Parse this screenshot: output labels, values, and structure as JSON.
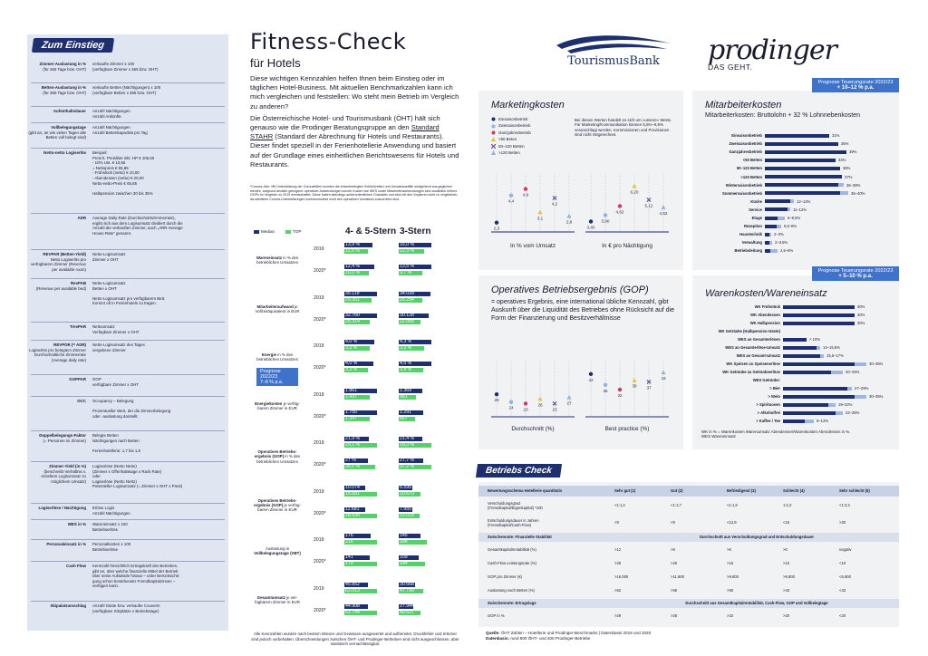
{
  "glossary": {
    "title": "Zum Einstieg",
    "rows": [
      {
        "term": "Zimmer-Auslastung in %",
        "sub": "(für 365 Tage bzw. OHT)",
        "def": "verkaufte Zimmer x 100\n(verfügbare Zimmer x 365 bzw. OHT)"
      },
      {
        "term": "Betten-Auslastung in %",
        "sub": "(für 365 Tage bzw. OHT)",
        "def": "verkaufte Betten (Nächtigungen) x 100\n(verfügbare Betten x 365 bzw. OHT)"
      },
      {
        "term": "Aufenthaltsdauer",
        "sub": "",
        "def": "Anzahl Nächtigungen\nAnzahl Ankünfte"
      },
      {
        "term": "Vollbelegungstage",
        "sub": "(gibt an, an wie vielen Tagen alle Betten voll belegt sind)",
        "def": "Anzahl Nächtigungen\nAnzahl Bettenkapazität pro Tag"
      },
      {
        "term": "Netto-netto Logiserlös",
        "sub": "",
        "def": "Beispiel:\nPreis lt. Preisliste inkl. HP        € 106,50\n- 10% Ust.                            € 10,65\n= Nettopreis                          € 95,85\n- Frühstück (netto)                   € 10,00\n- Abendessen (netto)                  € 20,00\nNetto-netto-Preis                     € 65,85\n\nHalbpension zwischen 30 bis 35%"
      },
      {
        "term": "ADR",
        "sub": "",
        "def": "Average Daily Rate (Durchschnittszimmerrate),\nergibt sich aus dem Logisumsatz dividiert durch die\nAnzahl der verkauften Zimmer, auch „ARR Average\nHouse Rate\" genannt."
      },
      {
        "term": "REVPAR (Betten-Yield)",
        "sub": "Netto Logiserlös pro verfügbarem Zimmer (Revenue per available room)",
        "def": "Netto-Logisumsatz\nZimmer x OHT"
      },
      {
        "term": "RevPAB",
        "sub": "(Revenue per available bed)",
        "def": "Netto-Logisumsatz\nBetten x OHT\n\nNetto-Logisumsatz pro verfügbarem Bett.\nKommt oft in Ferienhotels zu tragen."
      },
      {
        "term": "TrevPAR",
        "sub": "",
        "def": "Nettoumsatz\nVerfügbare Zimmer x OHT"
      },
      {
        "term": "REVPOR (= ADR)",
        "sub": "Logiserlös pro belegtem Zimmer Durchschnittliche Zimmerrate (Average daily rate)",
        "def": "Netto-Logisumsatz des Tages\nvergebene Zimmer"
      },
      {
        "term": "GOPPAR",
        "sub": "",
        "def": "GOP\nverfügbare Zimmer x OHT"
      },
      {
        "term": "OCC",
        "sub": "",
        "def": "Occupancy – Belegung\n\nProzentueller Wert, der die Zimmerbelegung\noder -auslastung darstellt."
      },
      {
        "term": "Doppelbelegungs-Faktor",
        "sub": "(= Personen im Zimmer)",
        "def": "Belegte Betten\nNächtigungen nach Betten\n\nFerienhotellerie: 1,7 bis 1,8"
      },
      {
        "term": "Zimmer-Yield (in %)",
        "sub": "(beschreibt Verhältnis v. erzieltem Logisumsatz zu möglichem Umsatz)",
        "def": "Logiserlöse (Netto Netto)\n(Zimmer x Offenhaltetage x Rack Rate)\noder\nLogiserlöse (Netto Netto)\nPotentieller Logisumsatz (= Zimmer x OHT x Preis)"
      },
      {
        "term": "Logiserlöse / Nächtigung",
        "sub": "",
        "def": "Erlöse Logis\nAnzahl Nächtigungen"
      },
      {
        "term": "WES in %",
        "sub": "",
        "def": "Wareneinsatz        x 100\nBetriebserlöse"
      },
      {
        "term": "Personaleinsatz in %",
        "sub": "",
        "def": "Personalkosten        x 100\nBetriebserlöse"
      },
      {
        "term": "Cash Flow",
        "sub": "",
        "def": "Kennzahl hinsichtlich Ertragskraft des Betriebes,\ngibt an, über welche finanzielle Mittel der Betrieb\nüber seine Aufwände hinaus – unter Berücksichti-\ngung schon bestehender Fremdkapitalzinsen –\nverfügen kann."
      },
      {
        "term": "Skipalatzumschlag",
        "sub": "",
        "def": "Anzahl Gäste bzw. verkaufte Couverts\n(verfügbare Sitzplätze x Betriebstage)"
      }
    ]
  },
  "header": {
    "title": "Fitness-Check",
    "subtitle": "für Hotels",
    "intro1": "Diese wichtigen Kennzahlen helfen Ihnen beim Einstieg oder im täglichen Hotel-Business. Mit aktuellen Benchmarkzahlen kann ich mich vergleichen und feststellen: Wo steht mein Betrieb im Vergleich zu anderen?",
    "intro2a": "Die Österreichische Hotel- und Tourismusbank (ÖHT) hält sich genauso wie die Prodinger Beratungsgruppe an den ",
    "intro2link": "Standard STAHR",
    "intro2b": " (Standard der Abrechnung für Hotels und Restaurants). Dieser findet speziell in der Ferienhotellerie Anwendung und basiert auf der Grundlage eines einheitlichen Berichtswesens für Hotels und Restaurants.",
    "corona_note": "*Corona-Jahr: Mit Unterstützung der Coronahilfen konnten die krisenbedingten Schließzeiten und Umsatzausfälle weitgehend aus-geglichen werden, aufgrund deutlich geringerer operativer Aufwendungen konnte Kosten wie WES sowie Mitarbeiteraufwendungen sind zusätzlich höhere GOPs im Vergleich zu 2019 erwirtschaftet. Diese haben allerdings außerordentlichen Charakter und sind mit den Vorjahren nicht zu vergleichen, da sämtliche Corona-Unterstützungen kontoinnewiese nicht den operativen Umsätzen zuzuordnen sind."
  },
  "benchmark": {
    "legend_median": "Median",
    "legend_top": "TOP",
    "col1": "4- & 5-Stern",
    "col2": "3-Stern",
    "prognose": "Prognose 2022/23\n7–8 % p.a.",
    "blocks": [
      {
        "label_b": "Wareneinsatz",
        "label": " in % des betrieblichen Umsatzes",
        "rows": [
          {
            "year": "2019",
            "a_med": "13,9 %",
            "a_top": "11,5 %",
            "b_med": "16,0 %",
            "b_top": "12,3 %",
            "am": 13.9,
            "at": 11.5,
            "bm": 16.0,
            "bt": 12.3
          },
          {
            "year": "2020*",
            "a_med": "12,4 %",
            "a_top": "10,0 %",
            "b_med": "13,5 %",
            "b_top": "9,7 %",
            "am": 12.4,
            "at": 10.0,
            "bm": 13.5,
            "bt": 9.7
          }
        ]
      },
      {
        "label_b": "Mitarbeiteraufwand",
        "label": " je Vollzeitäquivalent in EUR",
        "rows": [
          {
            "year": "2019",
            "a_med": "35.119",
            "a_top": "29.351",
            "b_med": "34.039",
            "b_top": "25.294",
            "am": 35119,
            "at": 29351,
            "bm": 34039,
            "bt": 25294
          },
          {
            "year": "2020*",
            "a_med": "32.760",
            "a_top": "25.314",
            "b_med": "30.128",
            "b_top": "22.066",
            "am": 32760,
            "at": 25314,
            "bm": 30128,
            "bt": 22066
          }
        ]
      },
      {
        "label_b": "Energie",
        "label": " in % des betrieblichen Umsatzes",
        "rows": [
          {
            "year": "2019",
            "a_med": "4,0 %",
            "a_top": "3,3 %",
            "b_med": "4,3 %",
            "b_top": "3,3 %",
            "am": 4.0,
            "at": 3.3,
            "bm": 4.3,
            "bt": 3.3
          },
          {
            "year": "2020*",
            "a_med": "4,0 %",
            "a_top": "3,3 %",
            "b_med": "4,5 %",
            "b_top": "3,4 %",
            "am": 4.0,
            "at": 3.3,
            "bm": 4.5,
            "bt": 3.4
          }
        ]
      },
      {
        "label_b": "Energiekosten",
        "label": " je verfüg-barem Zimmer in EUR",
        "rows": [
          {
            "year": "2019",
            "a_med": "1.861",
            "a_top": "1.437",
            "b_med": "1.369",
            "b_top": "981",
            "am": 1861,
            "at": 1437,
            "bm": 1369,
            "bt": 981
          },
          {
            "year": "2020*",
            "a_med": "1.750",
            "a_top": "1.347",
            "b_med": "1.291",
            "b_top": "867",
            "am": 1750,
            "at": 1347,
            "bm": 1291,
            "bt": 867
          }
        ]
      },
      {
        "label_b": "Operatives Betriebs-ergebnis (GOP)",
        "label": " in % des betrieblichen Umsatzes",
        "rows": [
          {
            "year": "2019",
            "a_med": "21,9 %",
            "a_top": "29,1 %",
            "b_med": "21,4 %",
            "b_top": "29,3 %",
            "am": 21.9,
            "at": 29.1,
            "bm": 21.4,
            "bt": 29.3
          },
          {
            "year": "2020*",
            "a_med": "27 %",
            "a_top": "35,1 %",
            "b_med": "27,7 %",
            "b_top": "37,2 %",
            "am": 27,
            "at": 35.1,
            "bm": 27.7,
            "bt": 37.2
          }
        ]
      },
      {
        "label_b": "Operatives Betriebs-ergebnis (GOP)",
        "label": " je verfüg-barem Zimmer in EUR",
        "rows": [
          {
            "year": "2019",
            "a_med": "10.074",
            "a_top": "15.681",
            "b_med": "6.595",
            "b_top": "10.670",
            "am": 10074,
            "at": 15681,
            "bm": 6595,
            "bt": 10670
          },
          {
            "year": "2020*",
            "a_med": "11.681",
            "a_top": "18.539",
            "b_med": "7.955",
            "b_top": "12.015",
            "am": 11681,
            "at": 18539,
            "bm": 7955,
            "bt": 12015
          }
        ]
      },
      {
        "label_b": "Vollbelegungstage (VBT)",
        "label": "Auslastung in ",
        "rows": [
          {
            "year": "2019",
            "a_med": "176",
            "a_top": "216",
            "b_med": "145",
            "b_top": "186",
            "am": 176,
            "at": 216,
            "bm": 145,
            "bt": 186
          },
          {
            "year": "2020*",
            "a_med": "141",
            "a_top": "179",
            "b_med": "109",
            "b_top": "144",
            "am": 141,
            "at": 179,
            "bm": 109,
            "bt": 144
          }
        ]
      },
      {
        "label_b": "Gesamtumsatz",
        "label": " je ver-fügbarem Zimmer in EUR",
        "rows": [
          {
            "year": "2019",
            "a_med": "45.852",
            "a_top": "63.013",
            "b_med": "30.668",
            "b_top": "47.799",
            "am": 45852,
            "at": 63013,
            "bm": 30668,
            "bt": 47799
          },
          {
            "year": "2020*",
            "a_med": "44.908",
            "a_top": "61.744",
            "b_med": "27.944",
            "b_top": "40.637",
            "am": 44908,
            "at": 61744,
            "bm": 27944,
            "bt": 40637
          }
        ]
      }
    ]
  },
  "footer_note": "Alle Kennzahlen wurden nach bestem Wissen und Gewissen ausgewertet und aufbereitet. Druckfehler und Irrtümer sind jedoch vorbehalten. Überschneidungen zwischen ÖHT- und Prodinger-Betrieben sind nicht ausgeschlossen, aber statistisch vernachlässigbar.",
  "logos": {
    "tb": "TourismusBank",
    "prodinger": "prodinger",
    "prodinger_sub": "DAS GEHT."
  },
  "marketing": {
    "title": "Marketingkosten",
    "legend": [
      "Einsaisonbetrieb",
      "Zweisaisonbetrieb",
      "Ganzjahresbetrieb",
      "<50 Beten",
      "50–120 Betten",
      ">120 Betten"
    ],
    "note": "Bei diesen Werten handelt es sich um »unsere« Werte. Für Marketing/Kommunikation können 5,5%–6,5% veranschlagt werden. Kommissionen und Provisionen sind nicht mitgerechnet.",
    "left_caption": "In % vom Umsatz",
    "right_caption": "In € pro Nächtigung",
    "left": [
      {
        "label": "2,3",
        "v": 2.3
      },
      {
        "label": "4,4",
        "v": 4.4
      },
      {
        "label": "4,9",
        "v": 4.9
      },
      {
        "label": "3,1",
        "v": 3.1
      },
      {
        "label": "4,2",
        "v": 4.2
      },
      {
        "label": "2,8",
        "v": 2.8
      }
    ],
    "right": [
      {
        "label": "3,40",
        "v": 3.4
      },
      {
        "label": "3,90",
        "v": 3.9
      },
      {
        "label": "4,62",
        "v": 4.62
      },
      {
        "label": "6,20",
        "v": 6.2
      },
      {
        "label": "5,12",
        "v": 5.12
      },
      {
        "label": "4,52",
        "v": 4.52
      }
    ]
  },
  "gop": {
    "title": "Operatives Betriebsergebnis (GOP)",
    "desc": "= operatives Ergebnis, eine international übliche Kennzahl, gibt Auskunft über die Liquidität des Betriebes ohne Rücksicht auf die Form der Finanzierung und Besitzverhältnisse",
    "left_caption": "Durchschnitt (%)",
    "right_caption": "Best practice (%)",
    "left": [
      {
        "label": "29",
        "v": 29
      },
      {
        "label": "24",
        "v": 24
      },
      {
        "label": "23",
        "v": 23
      },
      {
        "label": "26",
        "v": 26
      },
      {
        "label": "23",
        "v": 23
      },
      {
        "label": "27",
        "v": 27
      }
    ],
    "right": [
      {
        "label": "42",
        "v": 42
      },
      {
        "label": "35",
        "v": 35
      },
      {
        "label": "32",
        "v": 32
      },
      {
        "label": "38",
        "v": 38
      },
      {
        "label": "37",
        "v": 37
      },
      {
        "label": "43",
        "v": 43
      }
    ]
  },
  "staff": {
    "title": "Mitarbeiterkosten",
    "subtitle": "Mitarbeiterkosten: Bruttolohn + 32 % Lohnnebenkosten",
    "badge1": "Prognose Teuerungsrate 2022/23",
    "badge2": "+ 10–12 % p.a.",
    "rows": [
      {
        "label": "Einsaisonbetrieb",
        "val": "31%",
        "v": 31,
        "lo": 31
      },
      {
        "label": "Zweisaisonbetrieb",
        "val": "35%",
        "v": 35,
        "lo": 35
      },
      {
        "label": "Ganzjahresbetrieb",
        "val": "39%",
        "v": 39,
        "lo": 39
      },
      {
        "label": "<50 Betten",
        "val": "34%",
        "v": 34,
        "lo": 34
      },
      {
        "label": "50–120 Betten",
        "val": "36%",
        "v": 36,
        "lo": 36
      },
      {
        "label": ">120 Betten",
        "val": "37%",
        "v": 37,
        "lo": 37
      },
      {
        "label": "Wintersaisonbetrieb",
        "val": "35–38%",
        "v": 38,
        "lo": 35
      },
      {
        "label": "Sommersaisonbetrieb",
        "val": "36–40%",
        "v": 40,
        "lo": 36
      },
      {
        "label": "Küche",
        "val": "12–14%",
        "v": 14,
        "lo": 12
      },
      {
        "label": "Service",
        "val": "11–12%",
        "v": 12,
        "lo": 11
      },
      {
        "label": "Etage",
        "val": "6–9,5%",
        "v": 9.5,
        "lo": 6
      },
      {
        "label": "Rezeption",
        "val": "5,5–8%",
        "v": 8,
        "lo": 5.5
      },
      {
        "label": "Haustechnik",
        "val": "2–3%",
        "v": 3,
        "lo": 2
      },
      {
        "label": "Verwaltung",
        "val": "2–3,5%",
        "v": 3.5,
        "lo": 2
      },
      {
        "label": "Betriebsleitung",
        "val": "2,5–6%",
        "v": 6,
        "lo": 2.5
      }
    ]
  },
  "wares": {
    "title": "Warenkosten/Wareneinsatz",
    "badge1": "Prognose Teuerungsrate 2022/23",
    "badge2": "+ 5–10 % p.a.",
    "rows": [
      {
        "label": "WK Frühstück",
        "val": "30%",
        "v": 30,
        "lo": 30
      },
      {
        "label": "WK Abendessen",
        "val": "30%",
        "v": 30,
        "lo": 30
      },
      {
        "label": "WK Halbpension",
        "val": "30%",
        "v": 30,
        "lo": 30
      },
      {
        "label": "WK Getränke (Halbpension-Gäste)",
        "val": "",
        "v": 0,
        "lo": 0
      },
      {
        "label": "WES an Gesamterlösen",
        "val": "> 10%",
        "v": 10,
        "lo": 10
      },
      {
        "label": "WES an Gesamterlöse-Umsatz",
        "val": "14–15,5%",
        "v": 15.5,
        "lo": 14
      },
      {
        "label": "WES an Gesamt-Umsatz",
        "val": "15,5–17%",
        "v": 17,
        "lo": 15.5
      },
      {
        "label": "WK Speisen zu Speisenerlöse",
        "val": "30–35%",
        "v": 35,
        "lo": 30
      },
      {
        "label": "WK Getränke zu Getränkeerlöse",
        "val": "20–25%",
        "v": 25,
        "lo": 20
      },
      {
        "label": "WES Getränke:",
        "val": "",
        "v": 0,
        "lo": 0
      },
      {
        "label": "> Bier",
        "val": "27–29%",
        "v": 29,
        "lo": 27
      },
      {
        "label": "> Wein",
        "val": "30–35%",
        "v": 35,
        "lo": 30
      },
      {
        "label": "> Spirituosen",
        "val": "19–22%",
        "v": 22,
        "lo": 19
      },
      {
        "label": "> Alkoholfrei",
        "val": "22–25%",
        "v": 25,
        "lo": 22
      },
      {
        "label": "> Kaffee / Tee",
        "val": "9–13%",
        "v": 13,
        "lo": 9
      }
    ],
    "note": "WK in % = Warenkosten Warenumsatz Abendessen/Warenkosten Abendessen in %.\nWES Wareneinsatz"
  },
  "check": {
    "title": "Betriebs Check",
    "headers": [
      "Bewertungsschema Hotellerie quantitativ",
      "Sehr gut (1)",
      "Gut (2)",
      "Befriedigend (3)",
      "Schlecht (4)",
      "Sehr schlecht (5)"
    ],
    "rows": [
      {
        "type": "row",
        "cells": [
          "Verschuldungsgrad\n(Fremdkapital/Eigenkapital) *100",
          "<1:1,4",
          "<1:1,7",
          "<1:1,9",
          "1:2,3",
          "<1:2,3"
        ]
      },
      {
        "type": "row",
        "cells": [
          "Entschuldungsdauer in Jahren\n(Fremdkapital/Cash-Flow)",
          "<9",
          "<9",
          "<12,9",
          "<15",
          ">20"
        ]
      },
      {
        "type": "sec",
        "cells": [
          "Zwischennote: Finanzielle Stabilität",
          "Durchschnitt aus Verschuldungsgrad und Entschuldungsdauer"
        ]
      },
      {
        "type": "row",
        "cells": [
          "Gesamtkapitalrentabilität (%)",
          ">12",
          ">8",
          ">6",
          ">0",
          "negativ"
        ]
      },
      {
        "type": "row",
        "cells": [
          "Cash-Flow Leistungsrate (%)",
          ">25",
          ">20",
          ">15",
          ">10",
          "<10"
        ]
      },
      {
        "type": "row",
        "cells": [
          "GOP pro Zimmer (€)",
          ">16.000",
          ">11.600",
          ">9.800",
          ">8.800",
          "<6.800"
        ]
      },
      {
        "type": "row",
        "cells": [
          "Auslastung nach Betten (%)",
          ">62",
          ">56",
          ">50",
          ">43",
          "<43"
        ]
      },
      {
        "type": "sec",
        "cells": [
          "Zwischennote: Ertragslage",
          "Durchschnitt aus Gesamtkapitalrentabilität, Cash-Flow, GOP und Vollbelegtage"
        ]
      },
      {
        "type": "row",
        "cells": [
          "GOP in %",
          ">29",
          ">26",
          ">22",
          ">20",
          "<20"
        ]
      }
    ],
    "source_label": "Quelle:",
    "source": " ÖHT Zahlen – Hotellerie und Prodinger-Benchmarks | Datenbasis 2019 und 2020",
    "base_label": "Datenbasis:",
    "base": " rund 800 ÖHT- und 400 Prodinger-Betriebe"
  },
  "colors": {
    "navy": "#1d2f6f",
    "green": "#57cf6a",
    "blue": "#3f72c9",
    "panel": "#f1f2f4",
    "gloss": "#dfe5f1"
  }
}
